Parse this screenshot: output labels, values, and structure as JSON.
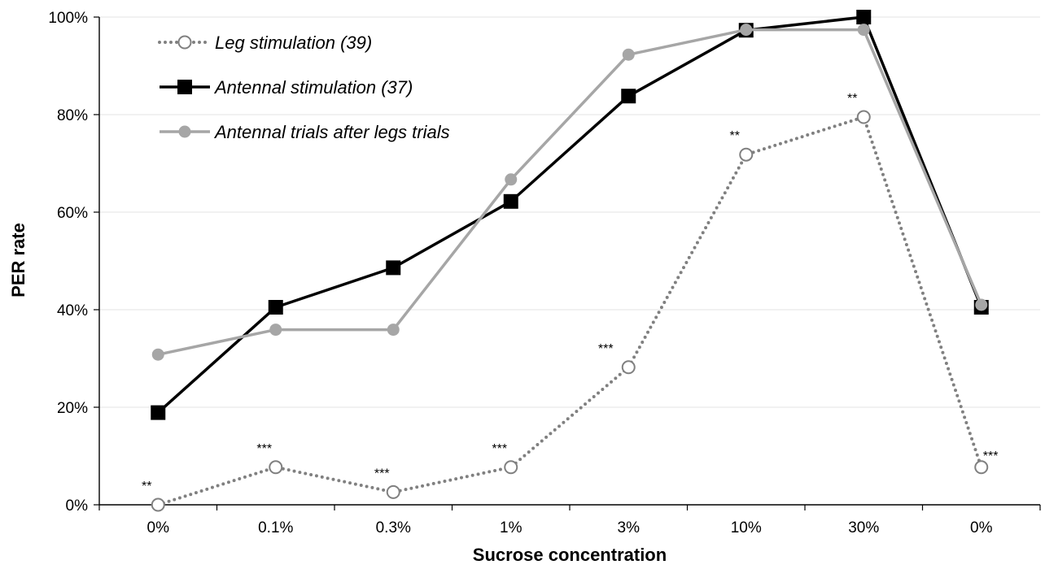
{
  "chart_data": {
    "type": "line",
    "xlabel": "Sucrose concentration",
    "ylabel": "PER rate",
    "categories": [
      "0%",
      "0.1%",
      "0.3%",
      "1%",
      "3%",
      "10%",
      "30%",
      "0%"
    ],
    "y_ticks": [
      "0%",
      "20%",
      "40%",
      "60%",
      "80%",
      "100%"
    ],
    "ylim": [
      0,
      100
    ],
    "y_unit": "%",
    "grid": "horizontal",
    "legend_position": "top-left",
    "series": [
      {
        "name": "Leg stimulation (39)",
        "values": [
          0,
          7.7,
          2.6,
          7.7,
          28.2,
          71.8,
          79.5,
          7.7
        ],
        "color": "#808080",
        "line_style": "dotted",
        "marker": "open-circle"
      },
      {
        "name": "Antennal stimulation (37)",
        "values": [
          18.9,
          40.5,
          48.6,
          62.2,
          83.8,
          97.3,
          100,
          40.5
        ],
        "color": "#000000",
        "line_style": "solid",
        "marker": "filled-square"
      },
      {
        "name": "Antennal trials after legs trials",
        "values": [
          30.8,
          35.9,
          35.9,
          66.7,
          92.3,
          97.4,
          97.4,
          41.0
        ],
        "color": "#a6a6a6",
        "line_style": "solid",
        "marker": "filled-circle"
      }
    ],
    "annotations": [
      {
        "series": 0,
        "index": 0,
        "text": "**"
      },
      {
        "series": 0,
        "index": 1,
        "text": "***"
      },
      {
        "series": 0,
        "index": 2,
        "text": "***"
      },
      {
        "series": 0,
        "index": 3,
        "text": "***"
      },
      {
        "series": 0,
        "index": 4,
        "text": "***"
      },
      {
        "series": 0,
        "index": 5,
        "text": "**"
      },
      {
        "series": 0,
        "index": 6,
        "text": "**"
      },
      {
        "series": 0,
        "index": 7,
        "text": "***"
      }
    ]
  }
}
